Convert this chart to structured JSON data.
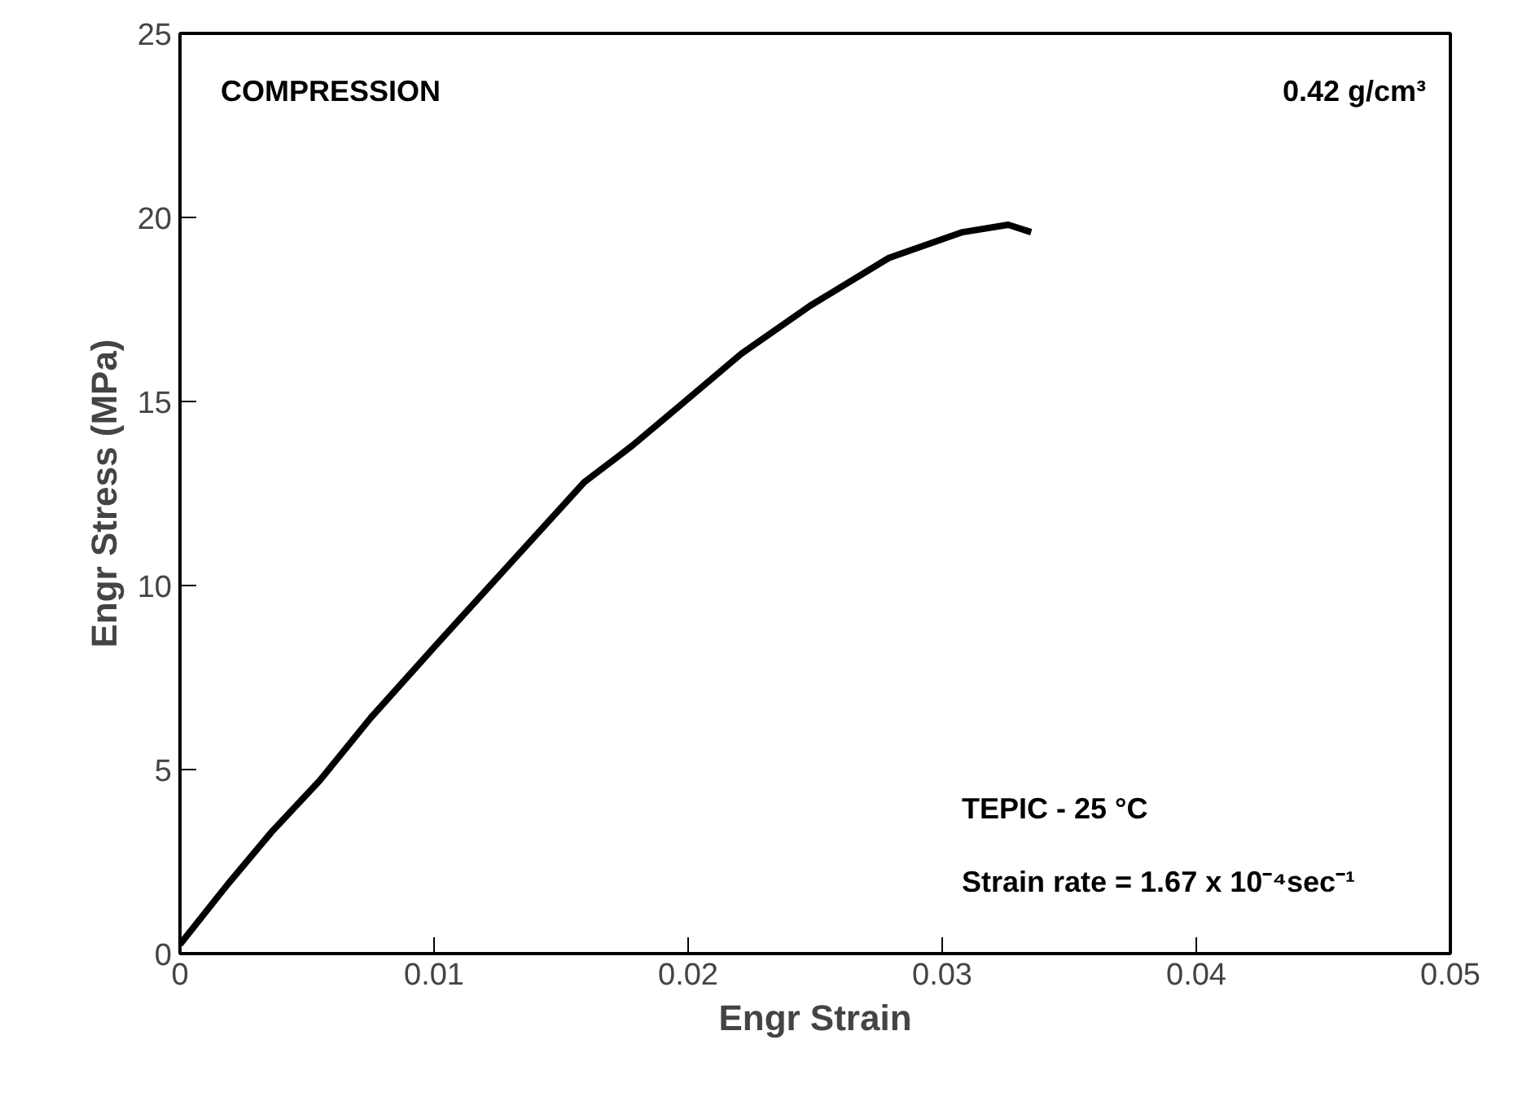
{
  "chart_data": {
    "type": "line",
    "xlabel": "Engr Strain",
    "ylabel": "Engr Stress (MPa)",
    "x": [
      0,
      0.0019,
      0.0036,
      0.0055,
      0.0075,
      0.0101,
      0.013,
      0.0159,
      0.0178,
      0.0197,
      0.0221,
      0.0248,
      0.0279,
      0.0308,
      0.0326,
      0.0335
    ],
    "series": [
      {
        "color": "#000000",
        "values": [
          0.25,
          1.9,
          3.3,
          4.7,
          6.4,
          8.4,
          10.6,
          12.8,
          13.8,
          14.9,
          16.3,
          17.6,
          18.9,
          19.6,
          19.8,
          19.6
        ]
      }
    ],
    "xlim": [
      0,
      0.05
    ],
    "xticks": [
      0,
      0.01,
      0.02,
      0.03,
      0.04,
      0.05
    ],
    "ylim": [
      0,
      25
    ],
    "yticks": [
      0,
      5,
      10,
      15,
      20,
      25
    ],
    "grid": false,
    "marker": "none",
    "line_style": "solid",
    "annotations": [
      "COMPRESSION",
      "0.42 g/cm³",
      "TEPIC - 25 °C",
      "Strain rate = 1.67 x 10⁻⁴sec⁻¹"
    ]
  }
}
